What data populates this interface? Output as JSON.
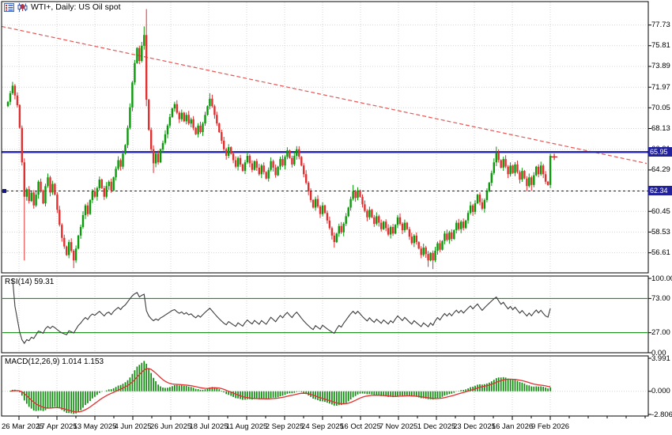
{
  "chart_data": {
    "type": "candlestick",
    "title": "WTI+, Daily:  US Oil spot",
    "symbol": "WTI+",
    "timeframe": "Daily",
    "description": "US Oil spot",
    "x_labels": [
      "26 Mar 2025",
      "17 Apr 2025",
      "13 May 2025",
      "4 Jun 2025",
      "26 Jun 2025",
      "18 Jul 2025",
      "11 Aug 2025",
      "2 Sep 2025",
      "24 Sep 2025",
      "16 Oct 2025",
      "7 Nov 2025",
      "1 Dec 2025",
      "23 Dec 2025",
      "16 Jan 2026",
      "9 Feb 2026"
    ],
    "price_ticks": [
      77.73,
      75.81,
      73.89,
      71.97,
      70.05,
      68.13,
      66.21,
      64.29,
      62.37,
      60.45,
      58.53,
      56.61
    ],
    "hlines": [
      {
        "price": 65.95,
        "label": "65.95",
        "style": "solid"
      },
      {
        "price": 62.34,
        "label": "62.34",
        "style": "dashed"
      }
    ],
    "trendline": {
      "style": "dashed",
      "price_start": 77.6,
      "price_end": 64.9
    },
    "last_price_marker": {
      "price": 65.5,
      "shape": "cross"
    },
    "candles": {
      "first_open": 70.2,
      "closes": [
        70.6,
        71.4,
        72.1,
        71.2,
        70.3,
        68.2,
        65.0,
        61.8,
        62.5,
        61.4,
        62.2,
        61.0,
        62.0,
        63.2,
        62.4,
        61.2,
        62.8,
        63.6,
        62.2,
        63.0,
        62.0,
        60.6,
        59.2,
        58.0,
        57.2,
        56.4,
        57.6,
        56.8,
        55.9,
        57.0,
        58.2,
        59.0,
        60.1,
        61.0,
        60.2,
        61.5,
        62.3,
        61.8,
        62.6,
        63.4,
        62.6,
        61.8,
        62.8,
        63.2,
        62.4,
        63.6,
        64.4,
        65.2,
        64.6,
        65.8,
        66.6,
        68.2,
        70.1,
        72.4,
        74.2,
        75.6,
        74.4,
        75.8,
        76.8,
        70.8,
        68.0,
        66.2,
        64.9,
        65.8,
        65.0,
        66.2,
        66.8,
        67.6,
        68.4,
        69.2,
        70.0,
        70.4,
        69.6,
        69.0,
        69.6,
        68.8,
        69.4,
        68.6,
        69.0,
        68.2,
        67.6,
        68.4,
        67.8,
        68.6,
        69.4,
        70.2,
        70.9,
        70.2,
        69.4,
        68.6,
        67.8,
        67.0,
        66.2,
        65.6,
        66.4,
        65.8,
        65.2,
        64.6,
        65.4,
        64.8,
        64.2,
        65.0,
        65.6,
        64.9,
        64.3,
        65.1,
        64.5,
        63.9,
        64.7,
        64.1,
        63.5,
        64.3,
        65.1,
        64.5,
        63.8,
        64.6,
        65.3,
        64.7,
        65.5,
        66.1,
        65.4,
        64.8,
        65.6,
        66.2,
        65.5,
        64.7,
        63.9,
        63.1,
        62.3,
        61.5,
        60.8,
        61.6,
        60.9,
        60.2,
        61.0,
        60.3,
        59.6,
        58.9,
        58.2,
        57.6,
        58.4,
        59.1,
        58.5,
        59.3,
        60.0,
        60.8,
        61.6,
        62.3,
        61.7,
        62.4,
        61.8,
        61.1,
        60.5,
        59.9,
        60.6,
        59.9,
        59.3,
        60.0,
        59.4,
        58.8,
        59.5,
        58.9,
        58.3,
        59.0,
        58.4,
        59.2,
        59.9,
        59.3,
        58.7,
        59.4,
        58.8,
        58.1,
        57.5,
        58.2,
        57.6,
        57.0,
        56.4,
        57.1,
        56.5,
        55.9,
        56.6,
        55.9,
        56.8,
        57.5,
        56.9,
        57.7,
        58.4,
        57.8,
        58.5,
        57.9,
        58.7,
        59.4,
        58.8,
        59.5,
        58.9,
        59.6,
        60.3,
        61.0,
        60.4,
        61.2,
        62.0,
        61.3,
        60.7,
        61.5,
        62.3,
        63.1,
        64.0,
        65.0,
        65.9,
        65.2,
        64.5,
        65.3,
        64.6,
        63.9,
        64.7,
        64.0,
        64.8,
        64.1,
        63.4,
        64.2,
        63.5,
        62.8,
        63.6,
        62.9,
        63.8,
        64.6,
        63.9,
        64.7,
        63.9,
        63.2,
        62.9,
        65.6
      ],
      "wick_overrides": [
        {
          "i": 7,
          "low": 55.9
        },
        {
          "i": 28,
          "low": 55.2
        },
        {
          "i": 58,
          "high": 77.6
        },
        {
          "i": 59,
          "high": 79.2,
          "low": 70.2
        },
        {
          "i": 62,
          "low": 64.0
        },
        {
          "i": 86,
          "high": 71.4
        },
        {
          "i": 123,
          "high": 66.5
        },
        {
          "i": 139,
          "low": 57.1
        },
        {
          "i": 147,
          "high": 62.9
        },
        {
          "i": 179,
          "low": 55.3
        },
        {
          "i": 181,
          "low": 55.1
        },
        {
          "i": 208,
          "high": 66.45
        },
        {
          "i": 221,
          "low": 62.3
        },
        {
          "i": 223,
          "low": 62.35
        },
        {
          "i": 231,
          "high": 65.8,
          "low": 62.6
        }
      ]
    },
    "rsi": {
      "label": "RSI(14) 59.31",
      "period": 14,
      "value": 59.31,
      "levels": [
        73,
        27
      ],
      "ticks": [
        {
          "v": 100,
          "label": "100.00"
        },
        {
          "v": 73,
          "label": "73.00"
        },
        {
          "v": 27,
          "label": "27.00"
        },
        {
          "v": 0,
          "label": "0.00"
        }
      ]
    },
    "macd": {
      "label": "MACD(12,26,9) 1.014 1.153",
      "fast": 12,
      "slow": 26,
      "signal_period": 9,
      "main_value": 1.014,
      "signal_value": 1.153,
      "range": [
        -2.806,
        3.991
      ],
      "ticks": [
        {
          "v": 3.991,
          "label": "3.991"
        },
        {
          "v": 0,
          "label": "0.000"
        },
        {
          "v": -2.806,
          "label": "-2.806"
        }
      ]
    },
    "colors": {
      "up": "#0a9a0a",
      "down": "#e03030",
      "hline_solid": "#2929ad",
      "hline_dashed": "#15158c",
      "trendline": "#e85555",
      "rsi_line": "#3c3c3c",
      "rsi_level": "#008000",
      "macd_hist": "#0f8a0f",
      "macd_signal": "#e03030",
      "grid": "#d4d4d4",
      "badge_bg": "#21219c",
      "cross": "#cc2222"
    }
  }
}
